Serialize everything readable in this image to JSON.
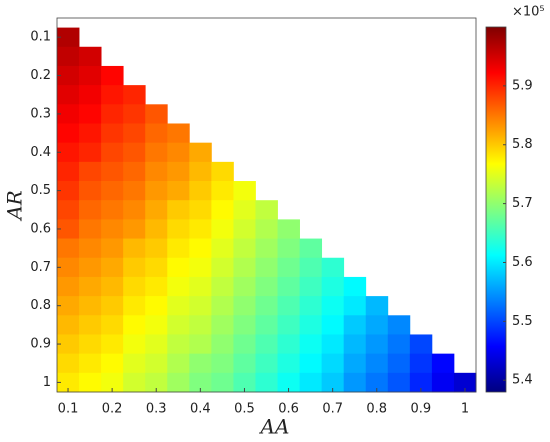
{
  "chart_data": {
    "type": "heatmap",
    "x_label": "AA",
    "y_label": "AR",
    "x": [
      0.1,
      0.15,
      0.2,
      0.25,
      0.3,
      0.35,
      0.4,
      0.45,
      0.5,
      0.55,
      0.6,
      0.65,
      0.7,
      0.75,
      0.8,
      0.85,
      0.9,
      0.95,
      1
    ],
    "y": [
      0.1,
      0.15,
      0.2,
      0.25,
      0.3,
      0.35,
      0.4,
      0.45,
      0.5,
      0.55,
      0.6,
      0.65,
      0.7,
      0.75,
      0.8,
      0.85,
      0.9,
      0.95,
      1
    ],
    "z": [
      [
        5.97
      ],
      [
        5.96,
        5.95
      ],
      [
        5.95,
        5.94,
        5.92
      ],
      [
        5.94,
        5.93,
        5.91,
        5.9
      ],
      [
        5.93,
        5.92,
        5.9,
        5.89,
        5.87
      ],
      [
        5.92,
        5.91,
        5.89,
        5.88,
        5.86,
        5.85
      ],
      [
        5.91,
        5.9,
        5.88,
        5.87,
        5.85,
        5.84,
        5.82
      ],
      [
        5.9,
        5.88,
        5.87,
        5.86,
        5.84,
        5.83,
        5.81,
        5.79
      ],
      [
        5.89,
        5.87,
        5.86,
        5.85,
        5.83,
        5.82,
        5.8,
        5.78,
        5.76
      ],
      [
        5.88,
        5.86,
        5.85,
        5.84,
        5.82,
        5.8,
        5.79,
        5.77,
        5.75,
        5.73
      ],
      [
        5.87,
        5.85,
        5.84,
        5.83,
        5.81,
        5.79,
        5.78,
        5.76,
        5.74,
        5.72,
        5.7
      ],
      [
        5.85,
        5.84,
        5.83,
        5.81,
        5.8,
        5.78,
        5.77,
        5.75,
        5.73,
        5.71,
        5.69,
        5.67
      ],
      [
        5.84,
        5.83,
        5.82,
        5.8,
        5.79,
        5.77,
        5.76,
        5.74,
        5.72,
        5.7,
        5.68,
        5.66,
        5.64
      ],
      [
        5.83,
        5.82,
        5.81,
        5.79,
        5.78,
        5.76,
        5.75,
        5.73,
        5.71,
        5.69,
        5.67,
        5.65,
        5.63,
        5.61
      ],
      [
        5.82,
        5.81,
        5.8,
        5.78,
        5.77,
        5.75,
        5.74,
        5.72,
        5.7,
        5.68,
        5.66,
        5.64,
        5.62,
        5.6,
        5.57
      ],
      [
        5.81,
        5.8,
        5.79,
        5.77,
        5.76,
        5.74,
        5.73,
        5.71,
        5.69,
        5.67,
        5.65,
        5.63,
        5.61,
        5.58,
        5.56,
        5.54
      ],
      [
        5.8,
        5.79,
        5.78,
        5.76,
        5.75,
        5.73,
        5.72,
        5.7,
        5.68,
        5.66,
        5.64,
        5.62,
        5.6,
        5.57,
        5.55,
        5.53,
        5.5
      ],
      [
        5.79,
        5.78,
        5.77,
        5.75,
        5.74,
        5.72,
        5.7,
        5.69,
        5.67,
        5.65,
        5.63,
        5.61,
        5.59,
        5.56,
        5.54,
        5.52,
        5.49,
        5.46
      ],
      [
        5.78,
        5.77,
        5.76,
        5.74,
        5.73,
        5.71,
        5.69,
        5.68,
        5.66,
        5.64,
        5.62,
        5.6,
        5.58,
        5.55,
        5.53,
        5.51,
        5.48,
        5.45,
        5.43
      ]
    ],
    "xlim": [
      0.075,
      1.025
    ],
    "ylim": [
      0.05,
      1.025
    ],
    "y_reversed": true,
    "xticks": [
      0.1,
      0.2,
      0.3,
      0.4,
      0.5,
      0.6,
      0.7,
      0.8,
      0.9,
      1
    ],
    "yticks": [
      0.1,
      0.2,
      0.3,
      0.4,
      0.5,
      0.6,
      0.7,
      0.8,
      0.9,
      1
    ],
    "colormap": "jet",
    "clim": [
      5.38,
      6.0
    ],
    "cticks": [
      5.4,
      5.5,
      5.6,
      5.7,
      5.8,
      5.9
    ],
    "colorbar_label": "×10⁵"
  }
}
